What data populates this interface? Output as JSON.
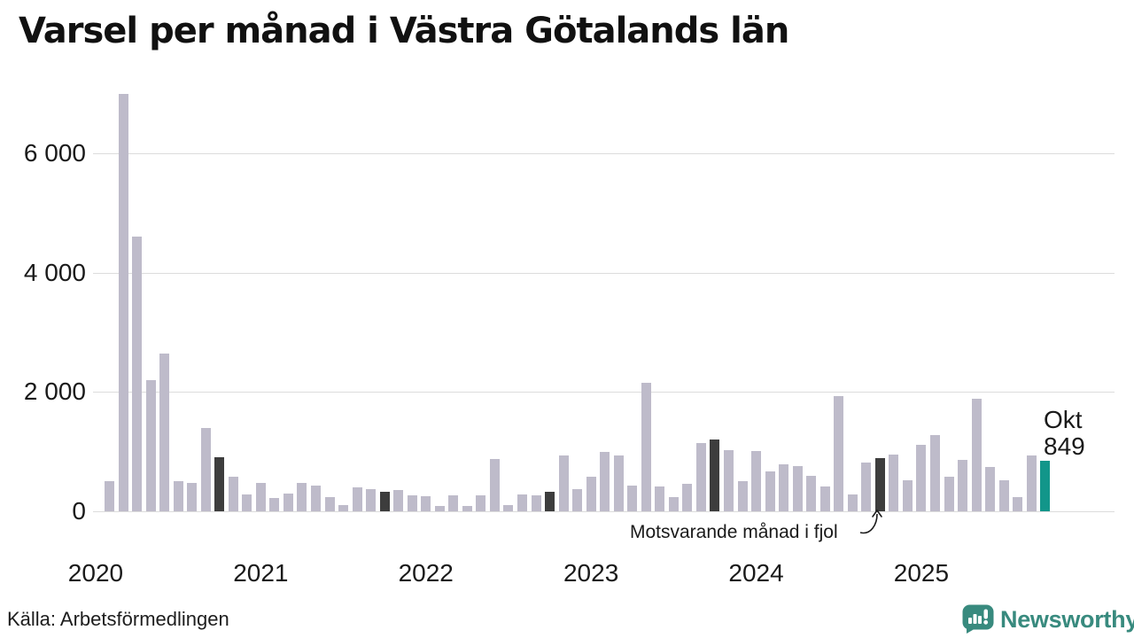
{
  "title": "Varsel per månad i Västra Götalands län",
  "source": "Källa: Arbetsförmedlingen",
  "annotation": {
    "text": "Motsvarande månad i fjol"
  },
  "highlight": {
    "line1": "Okt",
    "line2": "849"
  },
  "branding": {
    "name": "Newsworthy",
    "color": "#388a7e"
  },
  "colors": {
    "bar_default": "#bebbca",
    "bar_dark": "#3d3d3d",
    "bar_highlight": "#12968a",
    "gridline": "#dcdcdc",
    "text": "#1a1a1a"
  },
  "chart_data": {
    "type": "bar",
    "title": "Varsel per månad i Västra Götalands län",
    "xlabel": "",
    "ylabel": "",
    "grid": "horizontal",
    "legend_position": "none",
    "ylim": [
      0,
      7100
    ],
    "yticks": [
      0,
      2000,
      4000,
      6000
    ],
    "ytick_labels": [
      "0",
      "2 000",
      "4 000",
      "6 000"
    ],
    "year_labels": [
      "2020",
      "2021",
      "2022",
      "2023",
      "2024",
      "2025"
    ],
    "x_start": "2020-02",
    "x_end": "2025-10",
    "style_notes": "dark = Motsvarande månad i fjol (Okt varje år); highlight = senaste månaden Okt 2025",
    "points": [
      {
        "m": "2020-02",
        "v": 500
      },
      {
        "m": "2020-03",
        "v": 7000
      },
      {
        "m": "2020-04",
        "v": 4600
      },
      {
        "m": "2020-05",
        "v": 2200
      },
      {
        "m": "2020-06",
        "v": 2640
      },
      {
        "m": "2020-07",
        "v": 500
      },
      {
        "m": "2020-08",
        "v": 470
      },
      {
        "m": "2020-09",
        "v": 1390
      },
      {
        "m": "2020-10",
        "v": 900,
        "s": "dark"
      },
      {
        "m": "2020-11",
        "v": 585
      },
      {
        "m": "2020-12",
        "v": 285
      },
      {
        "m": "2021-01",
        "v": 470
      },
      {
        "m": "2021-02",
        "v": 225
      },
      {
        "m": "2021-03",
        "v": 290
      },
      {
        "m": "2021-04",
        "v": 475
      },
      {
        "m": "2021-05",
        "v": 425
      },
      {
        "m": "2021-06",
        "v": 240
      },
      {
        "m": "2021-07",
        "v": 110
      },
      {
        "m": "2021-08",
        "v": 395
      },
      {
        "m": "2021-09",
        "v": 375
      },
      {
        "m": "2021-10",
        "v": 330,
        "s": "dark"
      },
      {
        "m": "2021-11",
        "v": 360
      },
      {
        "m": "2021-12",
        "v": 260
      },
      {
        "m": "2022-01",
        "v": 255
      },
      {
        "m": "2022-02",
        "v": 85
      },
      {
        "m": "2022-03",
        "v": 270
      },
      {
        "m": "2022-04",
        "v": 90
      },
      {
        "m": "2022-05",
        "v": 270
      },
      {
        "m": "2022-06",
        "v": 880
      },
      {
        "m": "2022-07",
        "v": 100
      },
      {
        "m": "2022-08",
        "v": 280
      },
      {
        "m": "2022-09",
        "v": 270
      },
      {
        "m": "2022-10",
        "v": 330,
        "s": "dark"
      },
      {
        "m": "2022-11",
        "v": 930
      },
      {
        "m": "2022-12",
        "v": 370
      },
      {
        "m": "2023-01",
        "v": 585
      },
      {
        "m": "2023-02",
        "v": 990
      },
      {
        "m": "2023-03",
        "v": 930
      },
      {
        "m": "2023-04",
        "v": 435
      },
      {
        "m": "2023-05",
        "v": 2160
      },
      {
        "m": "2023-06",
        "v": 410
      },
      {
        "m": "2023-07",
        "v": 245
      },
      {
        "m": "2023-08",
        "v": 460
      },
      {
        "m": "2023-09",
        "v": 1150
      },
      {
        "m": "2023-10",
        "v": 1200,
        "s": "dark"
      },
      {
        "m": "2023-11",
        "v": 1030
      },
      {
        "m": "2023-12",
        "v": 510
      },
      {
        "m": "2024-01",
        "v": 1005
      },
      {
        "m": "2024-02",
        "v": 670
      },
      {
        "m": "2024-03",
        "v": 790
      },
      {
        "m": "2024-04",
        "v": 755
      },
      {
        "m": "2024-05",
        "v": 590
      },
      {
        "m": "2024-06",
        "v": 410
      },
      {
        "m": "2024-07",
        "v": 1930
      },
      {
        "m": "2024-08",
        "v": 285
      },
      {
        "m": "2024-09",
        "v": 815
      },
      {
        "m": "2024-10",
        "v": 890,
        "s": "dark"
      },
      {
        "m": "2024-11",
        "v": 945
      },
      {
        "m": "2024-12",
        "v": 525
      },
      {
        "m": "2025-01",
        "v": 1110
      },
      {
        "m": "2025-02",
        "v": 1280
      },
      {
        "m": "2025-03",
        "v": 585
      },
      {
        "m": "2025-04",
        "v": 860
      },
      {
        "m": "2025-05",
        "v": 1890
      },
      {
        "m": "2025-06",
        "v": 750
      },
      {
        "m": "2025-07",
        "v": 515
      },
      {
        "m": "2025-08",
        "v": 240
      },
      {
        "m": "2025-09",
        "v": 935
      },
      {
        "m": "2025-10",
        "v": 849,
        "s": "highlight"
      }
    ]
  }
}
